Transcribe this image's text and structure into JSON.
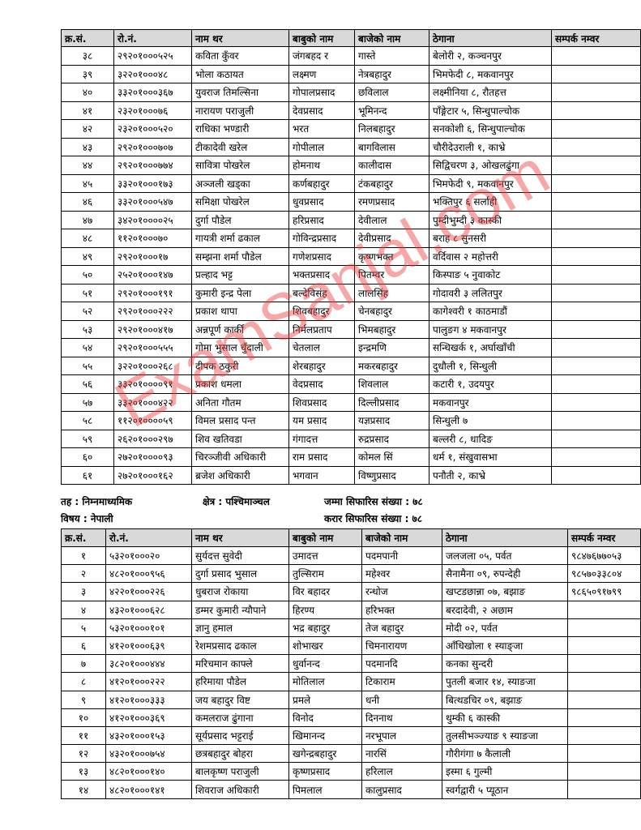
{
  "table1": {
    "header": [
      "क्र.सं.",
      "रो.नं.",
      "नाम थर",
      "बाबुको नाम",
      "बाजेको नाम",
      "ठेगाना",
      "सम्पर्क नम्वर"
    ],
    "rows": [
      [
        "३८",
        "२९२०१०००५२५",
        "कविता कुँवर",
        "जंगबहद र",
        "गास्ते",
        "बेलोरी २, कञ्चनपुर"
      ],
      [
        "३९",
        "३२२०१०००४८",
        "भोला कठायत",
        "लक्ष्मण",
        "नेत्रबहादुर",
        "भिमफेदी ८, मकवानपुर"
      ],
      [
        "४०",
        "३३२०१०००३६७",
        "युवराज तिमल्सिना",
        "गोपालप्रसाद",
        "छविलाल",
        "लक्ष्मीनिया ८, रौतहत्त"
      ],
      [
        "४१",
        "२३२०१०००७६",
        "नारायण पराजुली",
        "देवप्रसाद",
        "भूमिनन्द",
        "पाँङ्गेटार ५, सिन्धुपाल्चोक"
      ],
      [
        "४२",
        "२३२०१०००५२०",
        "राधिका भण्डारी",
        "भरत",
        "निलबहादुर",
        "सनकोशी ६, सिन्धुपाल्चोक"
      ],
      [
        "४३",
        "२९२०१०००७०७",
        "टीकादेवी खरेल",
        "गोपीलाल",
        "बागविलास",
        "चौरीदेउराली १, काभ्रे"
      ],
      [
        "४४",
        "२९२०१०००७७४",
        "सावित्रा पोखरेल",
        "होमनाथ",
        "कालीदास",
        "सिद्विचरण ३, ओखलढुंगा"
      ],
      [
        "४५",
        "३३२०१०००१७३",
        "अञ्जली खड्का",
        "कर्णबहादुर",
        "टंकबहादुर",
        "भिमफेदी ९, मकवानपुर"
      ],
      [
        "४६",
        "३३२०१०००५४७",
        "समिक्षा पोखरेल",
        "धुवप्रसाद",
        "रमणप्रसाद",
        "भक्तिपुर ६ सर्लाही"
      ],
      [
        "४७",
        "३४२०१००००२५",
        "दुर्गा पौडेल",
        "हरिप्रसाद",
        "देवीलाल",
        "पुम्दीभुम्दी ३ कास्की"
      ],
      [
        "४८",
        "११२०१०००७०",
        "गायत्री शर्मा ढकाल",
        "गोविन्द्रप्रसाद",
        "देवीप्रसाद",
        "बराह ८ सुनसरी"
      ],
      [
        "४९",
        "२९२०१०००१७",
        "सम्झना शर्मा पौडेल",
        "गणेशप्रसाद",
        "कृष्णभक्त",
        "वर्दिवास २ महोत्तरी"
      ],
      [
        "५०",
        "२५२०१०००१४७",
        "प्रल्हाद भट्ट",
        "भक्तप्रसाद",
        "पितम्वर",
        "किस्पाङ ५ नुवाकोट"
      ],
      [
        "५१",
        "२९२०१०००१९१",
        "कुमारी इन्द्र पेला",
        "बल्देविसंह",
        "लालसिंह",
        "गोदावरी ३ ललितपुर"
      ],
      [
        "५२",
        "२९२०१०००२२२",
        "प्रकाश थापा",
        "शिवबहादुर",
        "चेनबहादुर",
        "कागेश्वरी १ काठमाडौं"
      ],
      [
        "५३",
        "२९२०१०००४१७",
        "अन्नपूर्ण कार्की",
        "निर्मलप्रताप",
        "भिमबहादुर",
        "पालुङग ४ मकवानपुर"
      ],
      [
        "५४",
        "२९२०१०००५५५",
        "गोमा भुसाल चुँदाली",
        "चेतलाल",
        "इन्द्रमणि",
        "सन्धिखर्क १, अर्घाखाँची"
      ],
      [
        "५५",
        "३२२०१०००२६८",
        "दीपक ठकुरी",
        "शेरबहादुर",
        "मकरबहादुर",
        "दुधौली १, सिन्धुली"
      ],
      [
        "५६",
        "३३२०१००००९१",
        "प्रकाश धमला",
        "वेदप्रसाद",
        "शिवलाल",
        "कटारी १, उदयपुर"
      ],
      [
        "५७",
        "३३२०१०००४२२",
        "अनिता गौतम",
        "शिवप्रसाद",
        "दिल्लीप्रसाद",
        "मकवानपुर"
      ],
      [
        "५८",
        "११२०१००००५९",
        "विमल प्रसाद पन्त",
        "यम प्रसाद",
        "यज्ञप्रसाद",
        "सिन्धुली ७"
      ],
      [
        "५९",
        "२६२०१०००२९७",
        "शिव खतिवडा",
        "गंगादत्त",
        "रुद्रप्रसाद",
        "बल्लरी ८, धादिङ"
      ],
      [
        "६०",
        "२७२०१००००९३",
        "चिरञ्जीवी अधिकारी",
        "राम प्रसाद",
        "कोमल सिं",
        "धर्म १, संखुवासभा"
      ],
      [
        "६१",
        "२७२०१०००१६२",
        "ब्रजेश अधिकारी",
        "भगवान",
        "विष्णुप्रसाद",
        "पनौती २, काभ्रे"
      ]
    ]
  },
  "section": {
    "level": "तह : निम्नमाध्यमिक",
    "region": "क्षेत्र : पश्चिमाञ्चल",
    "total": "जम्मा सिफारिस संख्या : ७८",
    "subject": "विषय : नेपाली",
    "contract": "करार सिफारिस संख्या : ७८"
  },
  "table2": {
    "header": [
      "क्र.सं.",
      "रो.नं.",
      "नाम थर",
      "बाबुको नाम",
      "बाजेको नाम",
      "ठेगाना",
      "सम्पर्क नम्वर"
    ],
    "rows": [
      [
        "१",
        "५३२०१०००२०",
        "सुर्यदत्त सुवेदी",
        "उमादत्त",
        "पदमपानी",
        "जलजला ०५, पर्वत",
        "९८४७६७७०५३"
      ],
      [
        "२",
        "४८२०१०००९५६",
        "दुर्गा प्रसाद भुसाल",
        "तुल्सिराम",
        "महेश्वर",
        "सैनामैना ०९, रुपन्देही",
        "९८५७०३३८०४"
      ],
      [
        "३",
        "४२२०१०००२२६",
        "धुबराज रोकाया",
        "विर बहादर",
        "रन्धोज",
        "खप्टडछान्ना ०७, बझाङ",
        "९८६५०९१७९९"
      ],
      [
        "४",
        "४३२०१०००६२८",
        "डम्मर कुमारी न्यौपाने",
        "हिरण्य",
        "हरिभक्त",
        "बरदादेवी, २ अछाम"
      ],
      [
        "५",
        "५३२०१०००१०१",
        "ज्ञानु हमाल",
        "भद्र बहादुर",
        "तेज बहादुर",
        "मोदी ०२, पर्वत"
      ],
      [
        "६",
        "४१२०१०००६३९",
        "रेशमप्रसाद ढकाल",
        "शोभाखर",
        "चिमनारायण",
        "आँधिखोला १ स्याङ्जा"
      ],
      [
        "७",
        "३८२०१०००४४४",
        "मरिचमान काफ्ले",
        "धुर्वानन्द",
        "पदमानदि",
        "कनका सुन्दरी"
      ],
      [
        "८",
        "४१२०१०००२२२",
        "हरिमाया पौडेल",
        "मोतिलाल",
        "टिकाराम",
        "पुतली बजार १४, स्याङजा"
      ],
      [
        "९",
        "४१२०१०००३३३",
        "जय बहादुर विष्ट",
        "प्रमले",
        "धनी",
        "बित्थडचिर ०९, बझाङ"
      ],
      [
        "१०",
        "४१२०१०००३६९",
        "कमलराज ढुंगाना",
        "विनोद",
        "दिननाथ",
        "थुम्की ६ कास्की"
      ],
      [
        "११",
        "४३२०१०००१५३",
        "सूर्यप्रसाद भट्टराई",
        "खिमानन्द",
        "नरभूपाल",
        "तुलसीभञ्ज्याङ ९ स्याङजा"
      ],
      [
        "१२",
        "४३२०१०००७५४",
        "छत्रबहादुर बोहरा",
        "खगेन्द्रबहादुर",
        "नारसिं",
        "गौरीगंगा ७ कैलाली"
      ],
      [
        "१३",
        "४८२०१०००१४०",
        "बालकृष्ण पराजुली",
        "कृष्णप्रसाद",
        "हरिलाल",
        "इस्मा ६ गुल्मी"
      ],
      [
        "१४",
        "४८२०१०००१४१",
        "शिवराज अधिकारी",
        "पिमलाल",
        "कालुप्रसाद",
        "स्वर्गद्वारी ५ प्यूठान"
      ]
    ]
  },
  "watermark": "ExamSanjal.com"
}
